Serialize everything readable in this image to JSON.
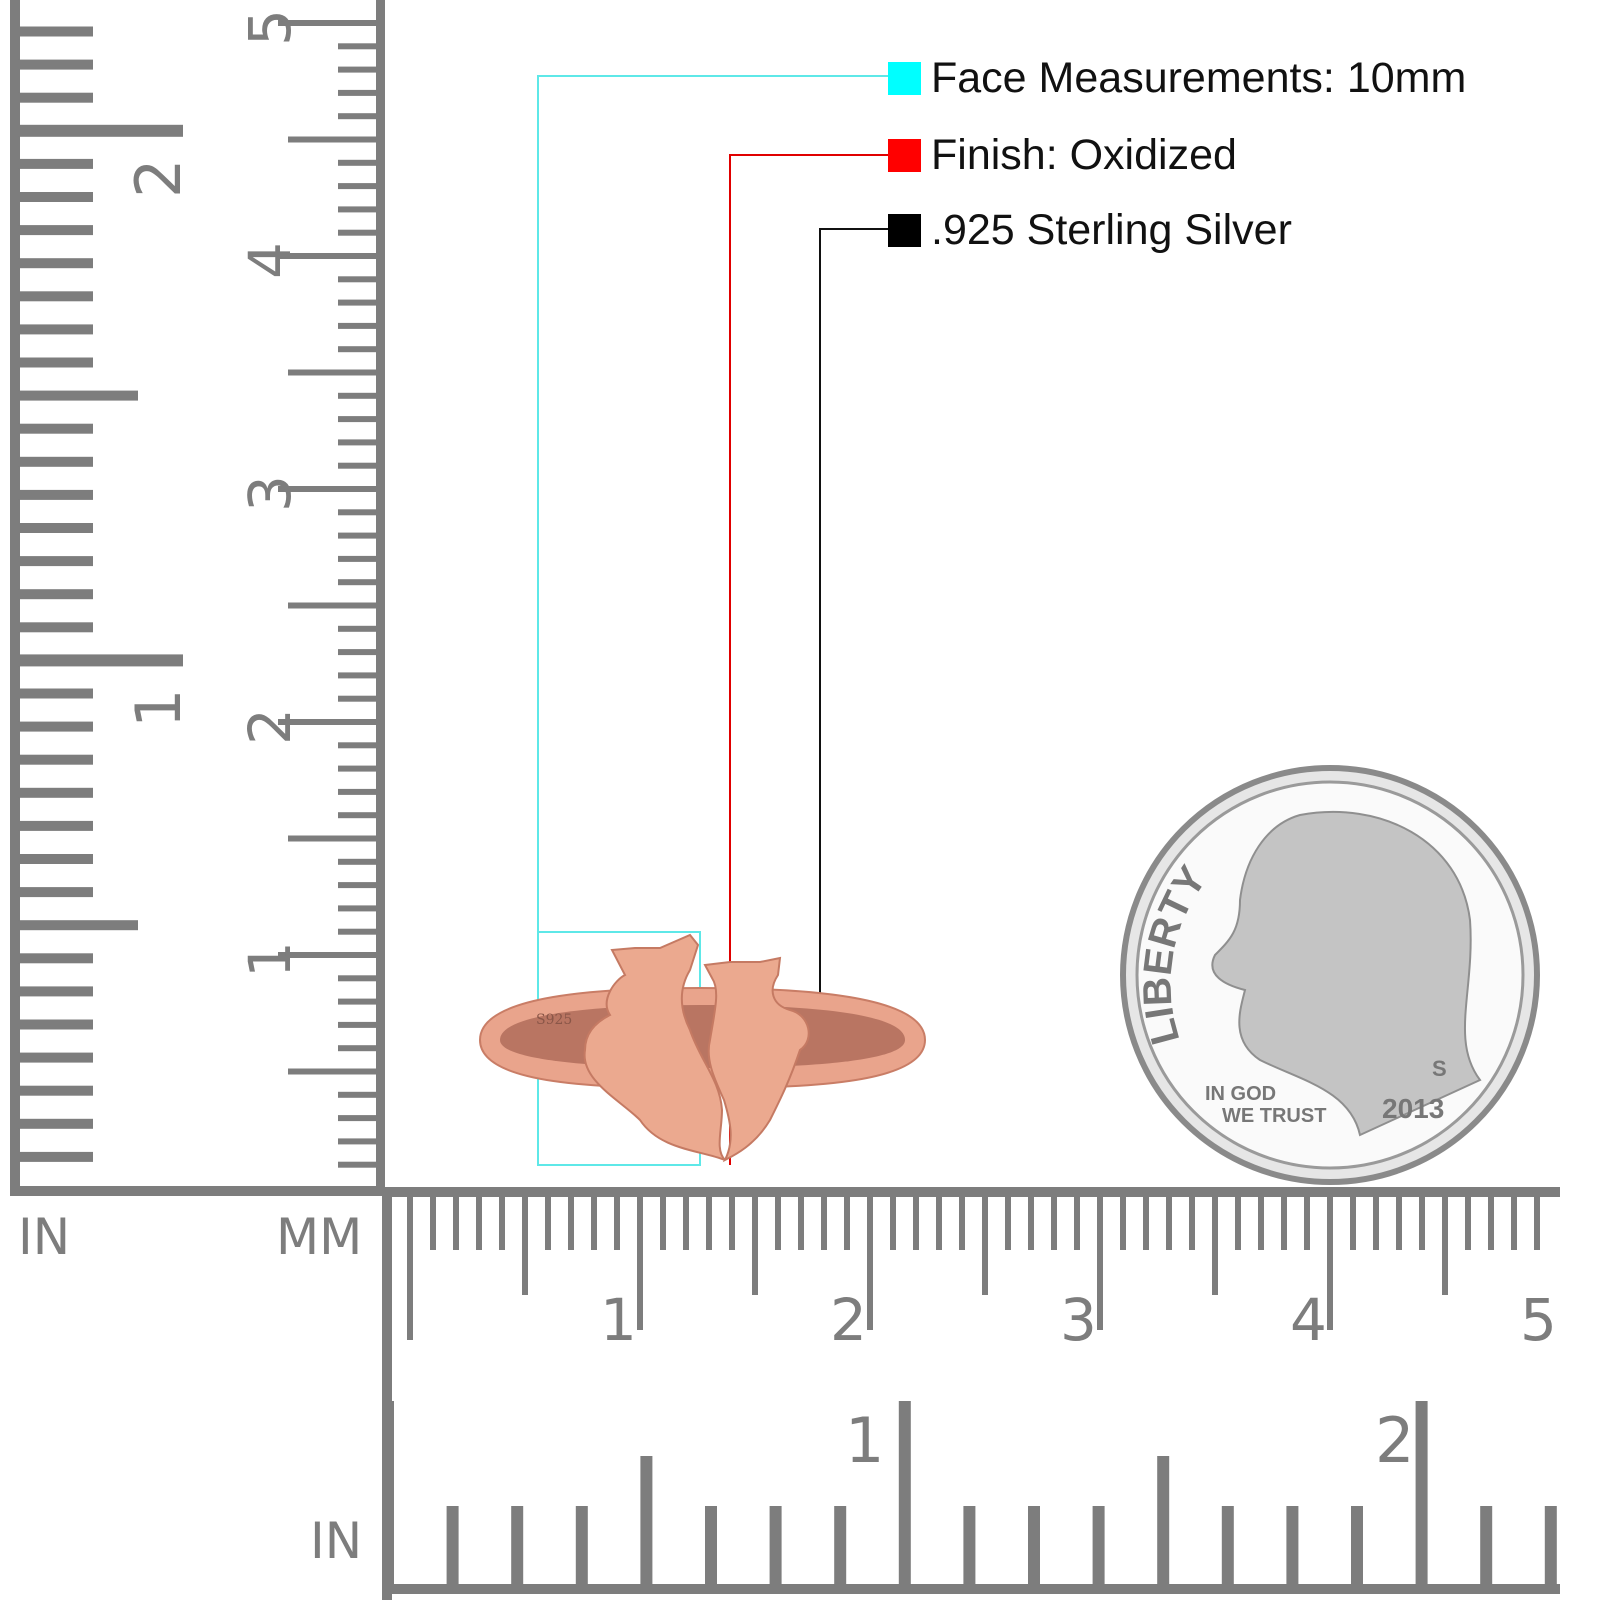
{
  "legend": [
    {
      "label": "Face Measurements: 10mm",
      "color": "#00ffff"
    },
    {
      "label": "Finish: Oxidized",
      "color": "#ff0000"
    },
    {
      "label": ".925 Sterling Silver",
      "color": "#000000"
    }
  ],
  "rulers": {
    "left_unit_in": "IN",
    "left_unit_mm": "MM",
    "bottom_unit_in": "IN",
    "vertical_mm_labels": [
      "1",
      "2",
      "3",
      "4",
      "5"
    ],
    "vertical_in_labels": [
      "1",
      "2"
    ],
    "horizontal_mm_labels": [
      "1",
      "2",
      "3",
      "4",
      "5"
    ],
    "horizontal_in_labels": [
      "1",
      "2"
    ],
    "color": "#7d7d7d"
  },
  "ring": {
    "stamp": "S925",
    "color": "#e9a48c"
  },
  "coin": {
    "legend_top": "LIBERTY",
    "motto_line1": "IN GOD",
    "motto_line2": "WE TRUST",
    "year": "2013",
    "mint_mark": "S"
  }
}
